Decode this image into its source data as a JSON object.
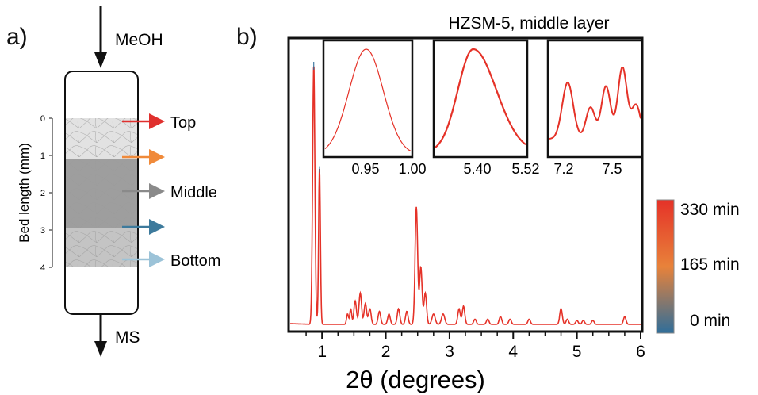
{
  "panel_a": {
    "letter": "a)",
    "inlet_label": "MeOH",
    "outlet_label": "MS",
    "axis_label": "Bed length (mm)",
    "ticks": [
      "0",
      "1",
      "2",
      "3",
      "4"
    ],
    "zones": [
      {
        "label": "Top",
        "arrow_color": "#e0302e"
      },
      {
        "label": "",
        "arrow_color": "#f08a3a"
      },
      {
        "label": "Middle",
        "arrow_color": "#8a8a8a"
      },
      {
        "label": "",
        "arrow_color": "#3d7a9c"
      },
      {
        "label": "Bottom",
        "arrow_color": "#9cc3d8"
      }
    ]
  },
  "panel_b": {
    "letter": "b)",
    "title": "HZSM-5, middle layer",
    "xlabel": "2θ (degrees)",
    "colorbar": {
      "labels": [
        "330 min",
        "165 min",
        "0 min"
      ],
      "colors": [
        "#e53228",
        "#e8823a",
        "#2f6e9a"
      ]
    },
    "insets": [
      {
        "ticks": [
          "0.95",
          "1.00"
        ]
      },
      {
        "ticks": [
          "5.40",
          "5.52"
        ]
      },
      {
        "ticks": [
          "7.2",
          "7.5"
        ]
      }
    ]
  },
  "chart_data": {
    "type": "line",
    "title": "HZSM-5, middle layer",
    "xlabel": "2θ (degrees)",
    "ylabel": "",
    "xlim": [
      0.5,
      6
    ],
    "xticks": [
      "1",
      "2",
      "3",
      "4",
      "5",
      "6"
    ],
    "ylim": [
      0,
      1
    ],
    "series": [
      {
        "color": "#e53228",
        "peaks": [
          {
            "x": 0.87,
            "y": 1.0,
            "w": 0.018
          },
          {
            "x": 0.96,
            "y": 0.6,
            "w": 0.014
          },
          {
            "x": 1.4,
            "y": 0.04,
            "w": 0.015
          },
          {
            "x": 1.45,
            "y": 0.06,
            "w": 0.015
          },
          {
            "x": 1.52,
            "y": 0.09,
            "w": 0.02
          },
          {
            "x": 1.6,
            "y": 0.12,
            "w": 0.02
          },
          {
            "x": 1.68,
            "y": 0.08,
            "w": 0.02
          },
          {
            "x": 1.75,
            "y": 0.06,
            "w": 0.02
          },
          {
            "x": 1.9,
            "y": 0.05,
            "w": 0.02
          },
          {
            "x": 2.05,
            "y": 0.04,
            "w": 0.02
          },
          {
            "x": 2.2,
            "y": 0.06,
            "w": 0.02
          },
          {
            "x": 2.33,
            "y": 0.05,
            "w": 0.02
          },
          {
            "x": 2.48,
            "y": 0.45,
            "w": 0.02
          },
          {
            "x": 2.55,
            "y": 0.22,
            "w": 0.02
          },
          {
            "x": 2.62,
            "y": 0.12,
            "w": 0.02
          },
          {
            "x": 2.75,
            "y": 0.04,
            "w": 0.025
          },
          {
            "x": 2.9,
            "y": 0.04,
            "w": 0.025
          },
          {
            "x": 3.15,
            "y": 0.06,
            "w": 0.02
          },
          {
            "x": 3.22,
            "y": 0.07,
            "w": 0.02
          },
          {
            "x": 3.4,
            "y": 0.02,
            "w": 0.02
          },
          {
            "x": 3.6,
            "y": 0.02,
            "w": 0.02
          },
          {
            "x": 3.8,
            "y": 0.03,
            "w": 0.02
          },
          {
            "x": 3.95,
            "y": 0.02,
            "w": 0.02
          },
          {
            "x": 4.25,
            "y": 0.02,
            "w": 0.02
          },
          {
            "x": 4.75,
            "y": 0.06,
            "w": 0.02
          },
          {
            "x": 4.85,
            "y": 0.02,
            "w": 0.02
          },
          {
            "x": 5.0,
            "y": 0.015,
            "w": 0.02
          },
          {
            "x": 5.1,
            "y": 0.015,
            "w": 0.02
          },
          {
            "x": 5.25,
            "y": 0.015,
            "w": 0.02
          },
          {
            "x": 5.75,
            "y": 0.03,
            "w": 0.02
          }
        ]
      }
    ],
    "legend": "colorbar, right"
  }
}
